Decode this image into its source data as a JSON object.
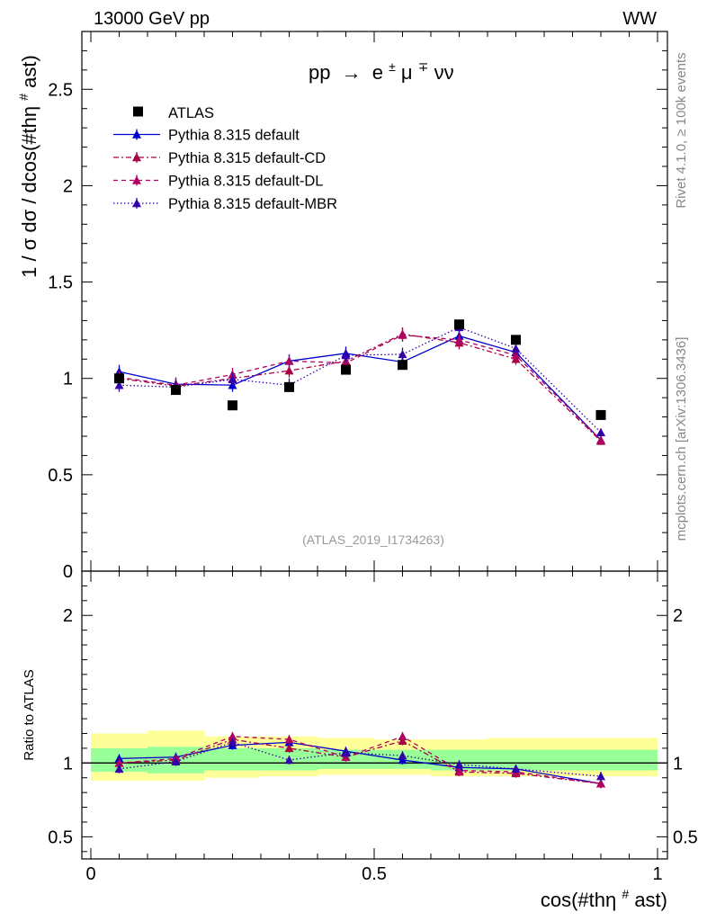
{
  "header": {
    "left": "13000 GeV pp",
    "right": "WW"
  },
  "side_labels": {
    "rivet": "Rivet 4.1.0, ≥ 100k events",
    "mcplots": "mcplots.cern.ch [arXiv:1306.3436]"
  },
  "chart_data": {
    "type": "scatter",
    "title": "pp → e±μ∓νν",
    "process": {
      "prefix": "pp",
      "arrow": "→",
      "e": "e",
      "e_sup": "±",
      "mu": "μ",
      "mu_sup": "∓",
      "nunu": "νν"
    },
    "watermark": "(ATLAS_2019_I1734263)",
    "xlabel": "cos(#thη#ast)",
    "xlabel_parts": {
      "pre": "cos(#thη",
      "sup": "#",
      "post": "ast)"
    },
    "ylabel": "1 / σ  dσ / dcos(#thη#ast)",
    "ylabel_parts": {
      "pre": "1 / σ  dσ / dcos(#thη",
      "sup": "#",
      "post": "ast)"
    },
    "ratio_ylabel": "Ratio to ATLAS",
    "xlim": [
      0,
      1
    ],
    "ylim": [
      0,
      2.8
    ],
    "ratio_ylim": [
      0.35,
      2.3
    ],
    "x_ticks": [
      {
        "value": 0,
        "label": "0"
      },
      {
        "value": 0.5,
        "label": "0.5"
      },
      {
        "value": 1,
        "label": "1"
      }
    ],
    "y_ticks": [
      {
        "value": 0,
        "label": "0"
      },
      {
        "value": 0.5,
        "label": "0.5"
      },
      {
        "value": 1,
        "label": "1"
      },
      {
        "value": 1.5,
        "label": "1.5"
      },
      {
        "value": 2,
        "label": "2"
      },
      {
        "value": 2.5,
        "label": "2.5"
      }
    ],
    "ratio_y_ticks": [
      {
        "value": 0.5,
        "label": "0.5"
      },
      {
        "value": 1,
        "label": "1"
      },
      {
        "value": 2,
        "label": "2"
      }
    ],
    "bin_edges": [
      0,
      0.1,
      0.2,
      0.3,
      0.4,
      0.5,
      0.6,
      0.7,
      0.8,
      1.0
    ],
    "x": [
      0.05,
      0.15,
      0.25,
      0.35,
      0.45,
      0.55,
      0.65,
      0.75,
      0.9
    ],
    "data": {
      "name": "ATLAS",
      "values": [
        1.0,
        0.94,
        0.86,
        0.955,
        1.045,
        1.07,
        1.28,
        1.2,
        0.81
      ]
    },
    "ratio_bands": {
      "outer": [
        [
          0.88,
          1.2
        ],
        [
          0.88,
          1.22
        ],
        [
          0.9,
          1.18
        ],
        [
          0.91,
          1.18
        ],
        [
          0.92,
          1.17
        ],
        [
          0.92,
          1.16
        ],
        [
          0.91,
          1.16
        ],
        [
          0.91,
          1.17
        ],
        [
          0.91,
          1.17
        ]
      ],
      "inner": [
        [
          0.94,
          1.1
        ],
        [
          0.93,
          1.11
        ],
        [
          0.95,
          1.1
        ],
        [
          0.95,
          1.1
        ],
        [
          0.96,
          1.09
        ],
        [
          0.96,
          1.09
        ],
        [
          0.95,
          1.09
        ],
        [
          0.95,
          1.09
        ],
        [
          0.95,
          1.09
        ]
      ]
    },
    "series": [
      {
        "name": "Pythia 8.315 default",
        "color": "#0000cc",
        "dash": "",
        "values": [
          1.035,
          0.97,
          0.965,
          1.09,
          1.13,
          1.085,
          1.22,
          1.135,
          0.68
        ],
        "errors": [
          0.035,
          0.035,
          0.035,
          0.035,
          0.035,
          0.035,
          0.035,
          0.03,
          0.02
        ],
        "ratio": [
          1.03,
          1.04,
          1.12,
          1.14,
          1.08,
          1.02,
          0.97,
          0.96,
          0.86
        ]
      },
      {
        "name": "Pythia 8.315 default-CD",
        "color": "#aa0044",
        "dash": "6,3,2,3",
        "values": [
          1.0,
          0.96,
          1.0,
          1.04,
          1.09,
          1.23,
          1.185,
          1.1,
          0.675
        ],
        "errors": [
          0.035,
          0.035,
          0.035,
          0.035,
          0.035,
          0.035,
          0.035,
          0.03,
          0.02
        ],
        "ratio": [
          1.0,
          1.02,
          1.16,
          1.1,
          1.04,
          1.15,
          0.94,
          0.93,
          0.86
        ]
      },
      {
        "name": "Pythia 8.315 default-DL",
        "color": "#b00060",
        "dash": "5,4",
        "values": [
          1.005,
          0.965,
          1.02,
          1.09,
          1.08,
          1.225,
          1.2,
          1.12,
          0.68
        ],
        "errors": [
          0.035,
          0.035,
          0.035,
          0.035,
          0.035,
          0.035,
          0.035,
          0.03,
          0.02
        ],
        "ratio": [
          1.0,
          1.03,
          1.18,
          1.16,
          1.04,
          1.18,
          0.95,
          0.94,
          0.86
        ]
      },
      {
        "name": "Pythia 8.315 default-MBR",
        "color": "#3300aa",
        "dash": "1.5,2.5",
        "values": [
          0.965,
          0.955,
          0.995,
          0.965,
          1.12,
          1.125,
          1.265,
          1.155,
          0.72
        ],
        "errors": [
          0.035,
          0.035,
          0.035,
          0.035,
          0.035,
          0.035,
          0.035,
          0.03,
          0.02
        ],
        "ratio": [
          0.96,
          1.01,
          1.14,
          1.02,
          1.07,
          1.05,
          0.99,
          0.96,
          0.91
        ]
      }
    ],
    "colors": {
      "band_outer": "#ffff99",
      "band_inner": "#99ff99",
      "data_marker": "#000000"
    }
  }
}
